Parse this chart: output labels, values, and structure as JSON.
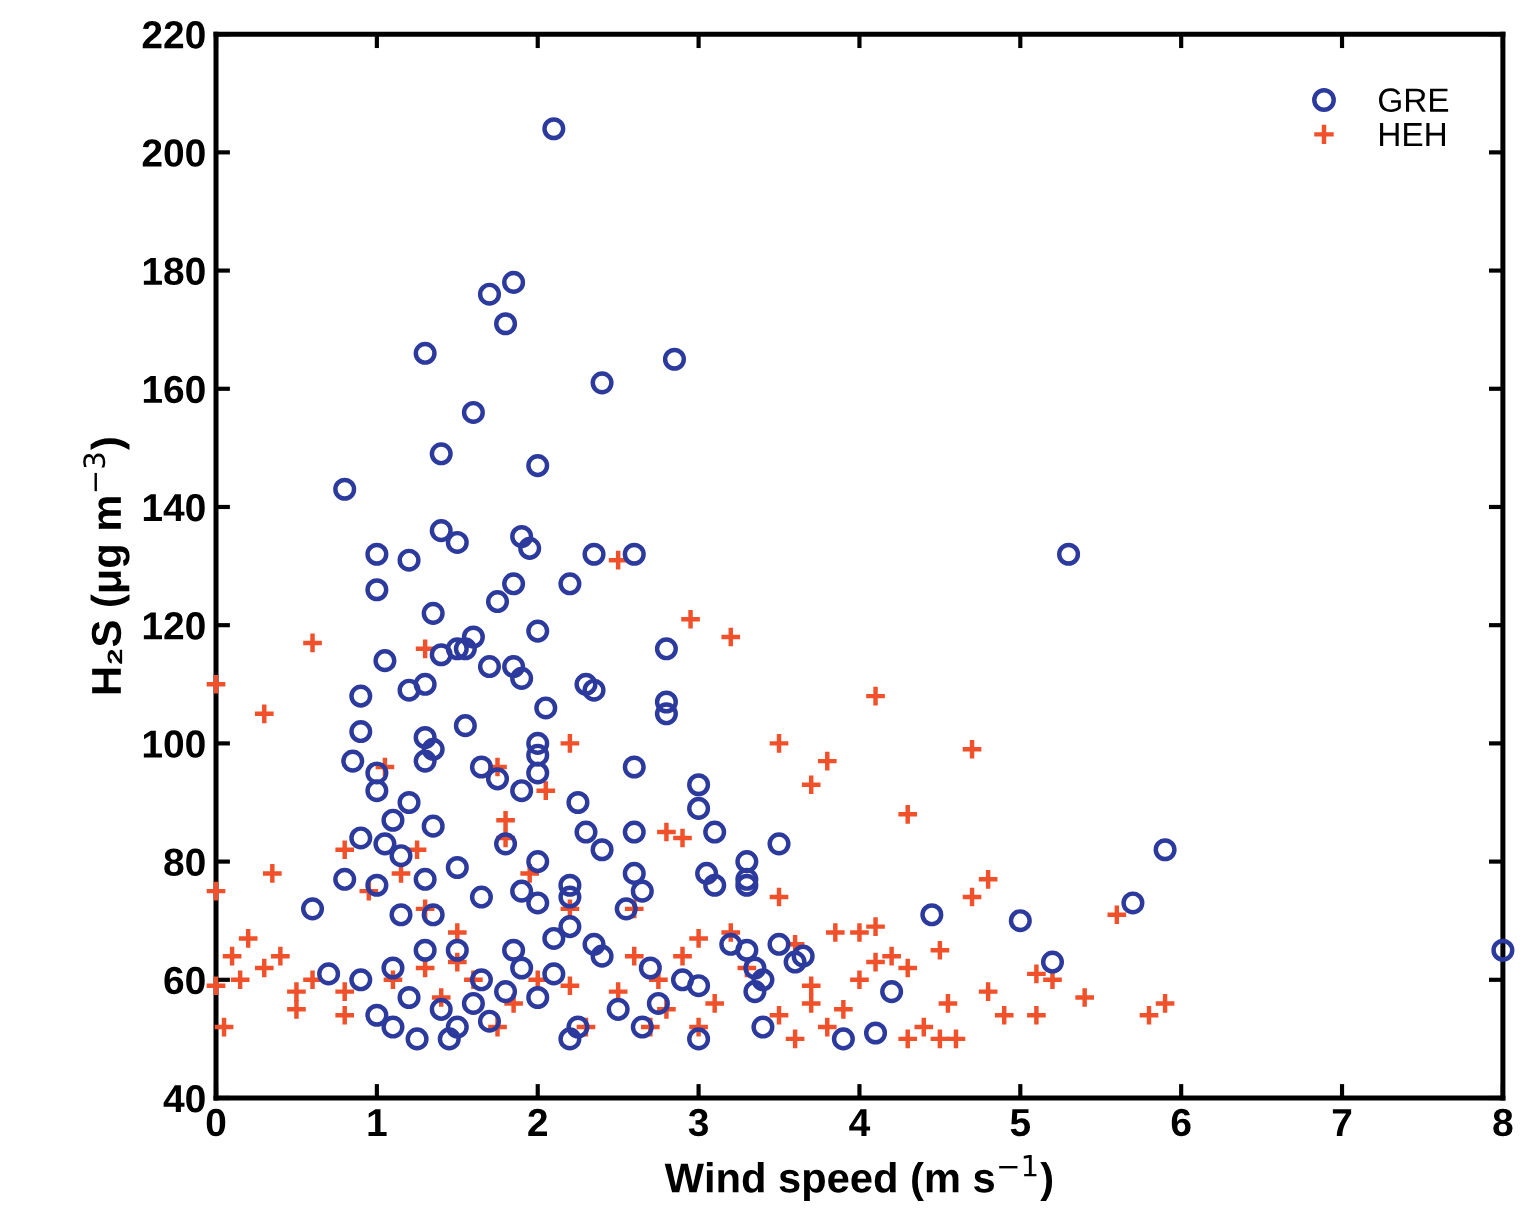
{
  "chart_data": {
    "type": "scatter",
    "xlabel": "Wind speed (m s$^{−1}$)",
    "ylabel": "H₂S (μg m$^{−3}$)",
    "xlim": [
      0,
      8
    ],
    "ylim": [
      40,
      220
    ],
    "xticks": [
      0,
      1,
      2,
      3,
      4,
      5,
      6,
      7,
      8
    ],
    "yticks": [
      40,
      60,
      80,
      100,
      120,
      140,
      160,
      180,
      200,
      220
    ],
    "grid": false,
    "legend": "top right",
    "series": [
      {
        "name": "GRE",
        "color": "#2b3a9c",
        "marker": "circle",
        "x": [
          2.1,
          1.7,
          1.85,
          1.8,
          1.3,
          2.85,
          2.4,
          1.6,
          1.4,
          2.0,
          0.8,
          1.4,
          1.9,
          1.95,
          1.5,
          1.0,
          1.2,
          2.35,
          2.6,
          5.3,
          1.0,
          1.85,
          2.2,
          1.75,
          1.6,
          1.35,
          2.0,
          1.4,
          1.5,
          1.55,
          2.8,
          1.05,
          1.7,
          1.85,
          1.9,
          2.3,
          2.35,
          0.9,
          1.3,
          1.2,
          2.8,
          2.8,
          1.55,
          2.05,
          1.3,
          1.35,
          0.9,
          0.85,
          1.3,
          1.65,
          1.75,
          2.0,
          2.0,
          2.0,
          3.0,
          3.0,
          2.6,
          1.9,
          1.2,
          1.1,
          1.35,
          1.0,
          1.0,
          0.9,
          1.05,
          2.25,
          2.3,
          1.8,
          1.5,
          1.15,
          1.0,
          2.0,
          2.4,
          2.6,
          1.65,
          1.9,
          2.2,
          2.6,
          2.65,
          3.1,
          3.5,
          3.3,
          3.3,
          3.3,
          3.05,
          3.1,
          0.8,
          1.3,
          0.6,
          1.15,
          1.35,
          2.0,
          2.2,
          2.2,
          2.55,
          3.2,
          3.3,
          3.5,
          4.45,
          5.0,
          5.7,
          5.9,
          5.2,
          8.0,
          4.2,
          3.35,
          3.4,
          3.35,
          3.6,
          3.65,
          3.4,
          3.9,
          4.1,
          3.0,
          3.0,
          2.9,
          2.7,
          2.4,
          2.1,
          1.9,
          1.8,
          1.6,
          1.4,
          1.2,
          1.1,
          1.0,
          0.9,
          0.7,
          1.5,
          1.7,
          2.0,
          2.25,
          2.5,
          2.65,
          2.75,
          1.3,
          1.1,
          1.5,
          1.85,
          2.1,
          2.35,
          1.65,
          1.25,
          1.45,
          2.2
        ],
        "values": [
          204,
          176,
          178,
          171,
          166,
          165,
          161,
          156,
          149,
          147,
          143,
          136,
          135,
          133,
          134,
          132,
          131,
          132,
          132,
          132,
          126,
          127,
          127,
          124,
          118,
          122,
          119,
          115,
          116,
          116,
          116,
          114,
          113,
          113,
          111,
          110,
          109,
          108,
          110,
          109,
          107,
          105,
          103,
          106,
          101,
          99,
          102,
          97,
          97,
          96,
          94,
          100,
          98,
          95,
          93,
          89,
          96,
          92,
          90,
          87,
          86,
          92,
          95,
          84,
          83,
          90,
          85,
          83,
          79,
          81,
          76,
          80,
          82,
          85,
          74,
          75,
          76,
          78,
          75,
          85,
          83,
          80,
          77,
          76,
          78,
          76,
          77,
          77,
          72,
          71,
          71,
          73,
          74,
          69,
          72,
          66,
          65,
          66,
          71,
          70,
          73,
          82,
          63,
          65,
          58,
          62,
          60,
          58,
          63,
          64,
          52,
          50,
          51,
          50,
          59,
          60,
          62,
          64,
          61,
          62,
          58,
          56,
          55,
          57,
          52,
          54,
          60,
          61,
          52,
          53,
          57,
          52,
          55,
          52,
          56,
          65,
          62,
          65,
          65,
          67,
          66,
          60,
          50,
          50,
          50
        ]
      },
      {
        "name": "HEH",
        "color": "#f0502a",
        "marker": "cross",
        "x": [
          0,
          0.3,
          0.6,
          1.3,
          1.8,
          2.2,
          2.5,
          2.95,
          3.2,
          4.1,
          3.5,
          4.7,
          3.8,
          3.7,
          4.3,
          2.8,
          2.9,
          0.8,
          0.35,
          1.25,
          1.15,
          1.8,
          1.95,
          2.05,
          1.75,
          1.05,
          3.5,
          4.8,
          4.7,
          5.6,
          0,
          0.2,
          0.4,
          0,
          0.05,
          0.15,
          0.3,
          0.5,
          0.5,
          0.6,
          0.8,
          0.8,
          1.1,
          1.3,
          1.4,
          1.6,
          1.75,
          1.85,
          2.0,
          2.2,
          2.3,
          2.5,
          2.7,
          2.75,
          2.8,
          3.0,
          3.1,
          3.3,
          3.5,
          3.6,
          3.7,
          3.8,
          3.9,
          4.0,
          4.1,
          4.2,
          4.3,
          4.4,
          4.5,
          4.6,
          4.3,
          4.55,
          4.8,
          4.9,
          5.1,
          5.1,
          5.2,
          5.4,
          5.8,
          5.9,
          3.85,
          4.0,
          4.1,
          3.6,
          3.7,
          4.5,
          3.2,
          3.0,
          2.2,
          2.6,
          1.5,
          1.3,
          0.95,
          1.5,
          2.6,
          2.9,
          0.1
        ],
        "values": [
          110,
          105,
          117,
          116,
          87,
          100,
          131,
          121,
          118,
          108,
          100,
          99,
          97,
          93,
          88,
          85,
          84,
          82,
          78,
          82,
          78,
          84,
          78,
          92,
          96,
          96,
          74,
          77,
          74,
          71,
          75,
          67,
          64,
          59,
          52,
          60,
          62,
          58,
          55,
          60,
          58,
          54,
          60,
          62,
          57,
          60,
          52,
          56,
          60,
          59,
          52,
          58,
          52,
          60,
          55,
          52,
          56,
          62,
          54,
          50,
          56,
          52,
          55,
          60,
          63,
          64,
          62,
          52,
          50,
          50,
          50,
          56,
          58,
          54,
          54,
          61,
          60,
          57,
          54,
          56,
          68,
          68,
          69,
          66,
          59,
          65,
          68,
          67,
          72,
          72,
          68,
          72,
          75,
          63,
          64,
          64,
          64
        ]
      }
    ]
  }
}
